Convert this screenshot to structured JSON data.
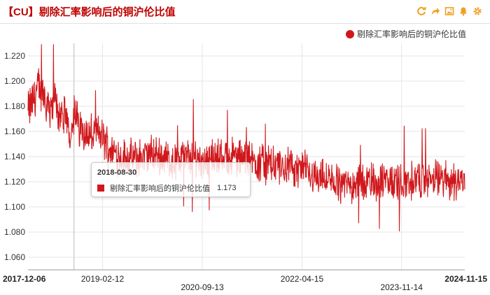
{
  "header": {
    "title": "【CU】剔除汇率影响后的铜沪伦比值",
    "tools": [
      "refresh-icon",
      "share-icon",
      "image-icon",
      "alert-icon",
      "settings-icon"
    ],
    "accent_color": "#f0a020"
  },
  "chart_data": {
    "type": "line",
    "series": [
      {
        "name": "剔除汇率影响后的铜沪伦比值",
        "color": "#d0181c",
        "points": [
          [
            "2017-12-06",
            1.175
          ],
          [
            "2018-01-05",
            1.185
          ],
          [
            "2018-02-05",
            1.195
          ],
          [
            "2018-03-05",
            1.19
          ],
          [
            "2018-04-05",
            1.18
          ],
          [
            "2018-05-05",
            1.185
          ],
          [
            "2018-06-05",
            1.175
          ],
          [
            "2018-07-05",
            1.17
          ],
          [
            "2018-08-05",
            1.16
          ],
          [
            "2018-08-30",
            1.173
          ],
          [
            "2018-10-01",
            1.165
          ],
          [
            "2018-11-01",
            1.16
          ],
          [
            "2018-12-01",
            1.155
          ],
          [
            "2019-01-01",
            1.16
          ],
          [
            "2019-02-12",
            1.155
          ],
          [
            "2019-04-01",
            1.145
          ],
          [
            "2019-06-01",
            1.14
          ],
          [
            "2019-08-01",
            1.138
          ],
          [
            "2019-10-01",
            1.14
          ],
          [
            "2019-12-01",
            1.142
          ],
          [
            "2020-02-01",
            1.14
          ],
          [
            "2020-04-01",
            1.135
          ],
          [
            "2020-06-01",
            1.14
          ],
          [
            "2020-09-13",
            1.138
          ],
          [
            "2020-12-01",
            1.14
          ],
          [
            "2021-03-01",
            1.14
          ],
          [
            "2021-06-01",
            1.138
          ],
          [
            "2021-09-01",
            1.135
          ],
          [
            "2021-12-01",
            1.132
          ],
          [
            "2022-04-15",
            1.13
          ],
          [
            "2022-07-01",
            1.125
          ],
          [
            "2022-10-01",
            1.12
          ],
          [
            "2023-01-01",
            1.118
          ],
          [
            "2023-04-01",
            1.12
          ],
          [
            "2023-07-01",
            1.12
          ],
          [
            "2023-11-14",
            1.12
          ],
          [
            "2024-03-01",
            1.122
          ],
          [
            "2024-07-01",
            1.122
          ],
          [
            "2024-11-15",
            1.12
          ]
        ]
      }
    ],
    "y_ticks": [
      "1.060",
      "1.080",
      "1.100",
      "1.120",
      "1.140",
      "1.160",
      "1.180",
      "1.200",
      "1.220"
    ],
    "ylim": [
      1.05,
      1.23
    ],
    "x_ticks": [
      {
        "label": "2017-12-06",
        "date": "2017-12-06",
        "bold": true,
        "row": 0
      },
      {
        "label": "2019-02-12",
        "date": "2019-02-12",
        "bold": false,
        "row": 0
      },
      {
        "label": "2020-09-13",
        "date": "2020-09-13",
        "bold": false,
        "row": 1
      },
      {
        "label": "2022-04-15",
        "date": "2022-04-15",
        "bold": false,
        "row": 0
      },
      {
        "label": "2023-11-14",
        "date": "2023-11-14",
        "bold": false,
        "row": 1
      },
      {
        "label": "2024-11-15",
        "date": "2024-11-15",
        "bold": true,
        "row": 0
      }
    ],
    "xlim": [
      "2017-12-06",
      "2024-11-15"
    ],
    "grid": true,
    "legend_position": "top-right"
  },
  "tooltip": {
    "date": "2018-08-30",
    "series_name": "剔除汇率影响后的铜沪伦比值",
    "value": "1.173"
  }
}
